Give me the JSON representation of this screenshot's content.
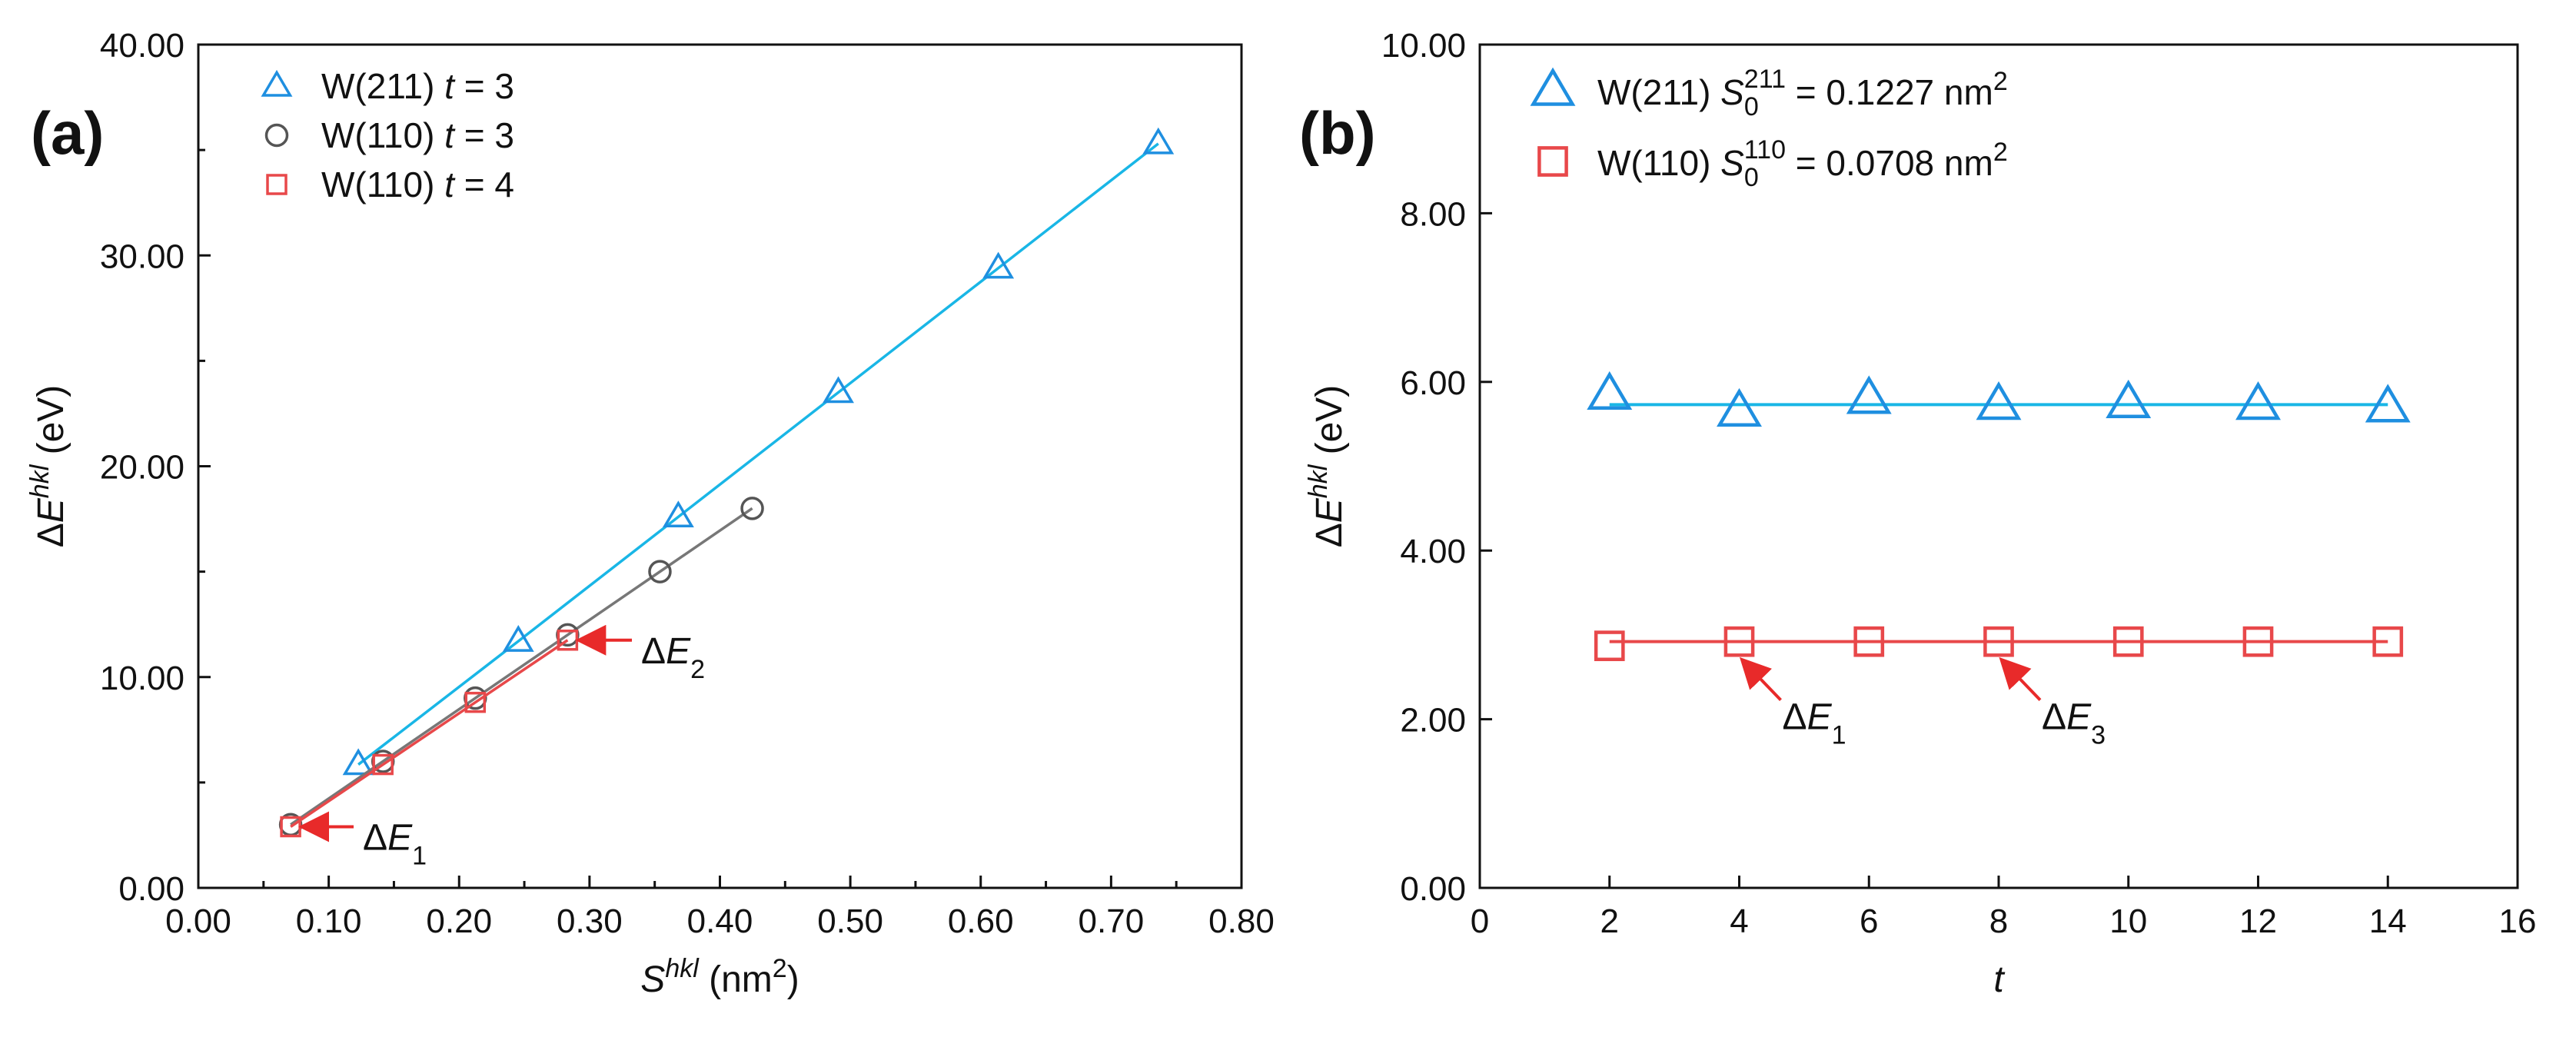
{
  "colors": {
    "blue": "#1f8fe0",
    "blue_line": "#19b6e6",
    "gray": "#555555",
    "red": "#e8484a",
    "red_line": "#f06a6a",
    "arrow": "#e82a2a"
  },
  "chart_data": [
    {
      "type": "line",
      "panel_label": "(a)",
      "xlabel": {
        "base": "S",
        "sup": "hkl",
        "units": " (nm",
        "units_sup": "2",
        "units_end": ")"
      },
      "ylabel": {
        "prefix": "Δ",
        "base": "E",
        "sup": "hkl",
        "units": " (eV)"
      },
      "xlim": [
        0,
        0.8
      ],
      "ylim": [
        0,
        40
      ],
      "xticks": [
        0,
        0.1,
        0.2,
        0.3,
        0.4,
        0.5,
        0.6,
        0.7,
        0.8
      ],
      "xtick_labels": [
        "0.00",
        "0.10",
        "0.20",
        "0.30",
        "0.40",
        "0.50",
        "0.60",
        "0.70",
        "0.80"
      ],
      "yticks": [
        0,
        10,
        20,
        30,
        40
      ],
      "ytick_labels": [
        "0.00",
        "10.00",
        "20.00",
        "30.00",
        "40.00"
      ],
      "series": [
        {
          "name": "W(211)",
          "t_label": "t",
          "t_value": "= 3",
          "marker": "triangle",
          "color": "#1f8fe0",
          "line_color": "#19b6e6",
          "x": [
            0.1227,
            0.2454,
            0.3681,
            0.4908,
            0.6135,
            0.7362
          ],
          "y": [
            5.85,
            11.7,
            17.6,
            23.5,
            29.4,
            35.3
          ]
        },
        {
          "name": "W(110)",
          "t_label": "t",
          "t_value": "= 3",
          "marker": "circle",
          "color": "#555555",
          "line_color": "#777777",
          "x": [
            0.0708,
            0.1416,
            0.2124,
            0.2832,
            0.354,
            0.4248
          ],
          "y": [
            3.0,
            6.0,
            9.0,
            12.0,
            15.0,
            18.0
          ]
        },
        {
          "name": "W(110)",
          "t_label": "t",
          "t_value": "= 4",
          "marker": "square",
          "color": "#e8484a",
          "line_color": "#e8484a",
          "x": [
            0.0708,
            0.1416,
            0.2124,
            0.2832
          ],
          "y": [
            2.9,
            5.85,
            8.8,
            11.75
          ]
        }
      ],
      "annotations": [
        {
          "prefix": "Δ",
          "base": "E",
          "sub": "1",
          "x": 0.0708,
          "y": 2.9
        },
        {
          "prefix": "Δ",
          "base": "E",
          "sub": "2",
          "x": 0.2832,
          "y": 11.75
        }
      ]
    },
    {
      "type": "line",
      "panel_label": "(b)",
      "xlabel": {
        "base": "t"
      },
      "ylabel": {
        "prefix": "Δ",
        "base": "E",
        "sup": "hkl",
        "units": " (eV)"
      },
      "xlim": [
        0,
        16
      ],
      "ylim": [
        0,
        10
      ],
      "xticks": [
        0,
        2,
        4,
        6,
        8,
        10,
        12,
        14,
        16
      ],
      "xtick_labels": [
        "0",
        "2",
        "4",
        "6",
        "8",
        "10",
        "12",
        "14",
        "16"
      ],
      "yticks": [
        0,
        2,
        4,
        6,
        8,
        10
      ],
      "ytick_labels": [
        "0.00",
        "2.00",
        "4.00",
        "6.00",
        "8.00",
        "10.00"
      ],
      "series": [
        {
          "name": "W(211)",
          "s_base": "S",
          "s_sub": "0",
          "s_sup": "211",
          "s_value": " = 0.1227 nm",
          "s_unit_sup": "2",
          "marker": "triangle",
          "color": "#1f8fe0",
          "line_color": "#19b6e6",
          "fit": 5.73,
          "x": [
            2,
            4,
            6,
            8,
            10,
            12,
            14
          ],
          "y": [
            5.85,
            5.65,
            5.8,
            5.73,
            5.75,
            5.73,
            5.7
          ]
        },
        {
          "name": "W(110)",
          "s_base": "S",
          "s_sub": "0",
          "s_sup": "110",
          "s_value": " = 0.0708 nm",
          "s_unit_sup": "2",
          "marker": "square",
          "color": "#e8484a",
          "line_color": "#e8484a",
          "fit": 2.92,
          "x": [
            2,
            4,
            6,
            8,
            10,
            12,
            14
          ],
          "y": [
            2.87,
            2.92,
            2.92,
            2.92,
            2.92,
            2.92,
            2.92
          ]
        }
      ],
      "annotations": [
        {
          "prefix": "Δ",
          "base": "E",
          "sub": "1",
          "x": 4,
          "y": 2.92
        },
        {
          "prefix": "Δ",
          "base": "E",
          "sub": "3",
          "x": 8,
          "y": 2.92
        }
      ]
    }
  ]
}
